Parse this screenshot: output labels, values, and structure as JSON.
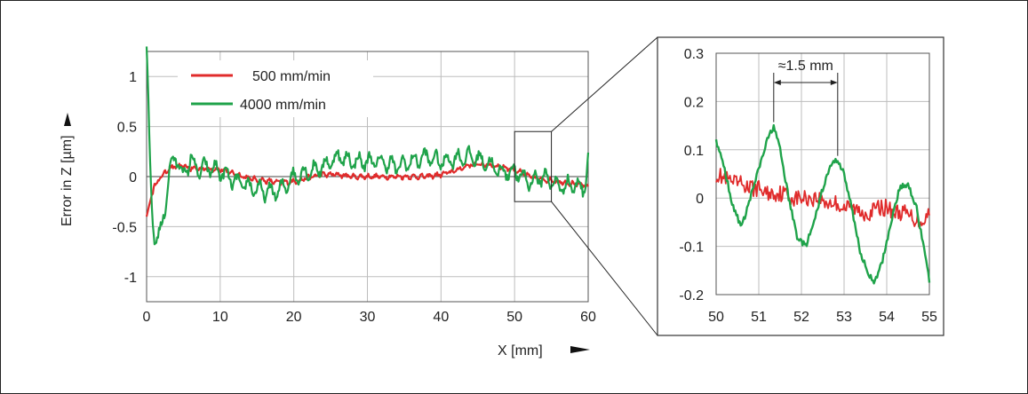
{
  "chart_data": [
    {
      "type": "line",
      "xlabel": "X [mm]",
      "ylabel": "Error in Z [µm]",
      "xlim": [
        0,
        60
      ],
      "ylim": [
        -1.25,
        1.25
      ],
      "xticks": [
        "0",
        "10",
        "20",
        "30",
        "40",
        "50",
        "60"
      ],
      "yticks": [
        "1",
        "0.5",
        "0",
        "-0.5",
        "-1"
      ],
      "grid": true,
      "legend_position": "top-left",
      "series": [
        {
          "name": "500 mm/min",
          "color": "#e02b2b",
          "x": [
            0,
            0.3,
            1,
            2,
            3,
            4,
            5,
            6,
            8,
            10,
            12,
            14,
            16,
            18,
            20,
            22,
            24,
            26,
            28,
            30,
            32,
            34,
            36,
            38,
            40,
            42,
            44,
            46,
            48,
            50,
            52,
            54,
            56,
            58,
            60
          ],
          "y": [
            -0.4,
            -0.3,
            -0.1,
            0.0,
            0.08,
            0.1,
            0.1,
            0.08,
            0.08,
            0.07,
            0.03,
            -0.02,
            -0.04,
            -0.06,
            -0.05,
            -0.01,
            0.02,
            0.02,
            0.0,
            0.0,
            0.0,
            0.0,
            0.0,
            0.0,
            0.02,
            0.06,
            0.12,
            0.12,
            0.1,
            0.07,
            0.0,
            -0.03,
            -0.05,
            -0.07,
            -0.1
          ]
        },
        {
          "name": "4000 mm/min",
          "color": "#1fa34a",
          "x": [
            0,
            0.2,
            0.4,
            0.7,
            1,
            1.5,
            2,
            2.5,
            3,
            3.5,
            4,
            5,
            6,
            7,
            8,
            10,
            12,
            14,
            16,
            18,
            20,
            22,
            24,
            26,
            28,
            30,
            32,
            34,
            36,
            38,
            40,
            42,
            44,
            46,
            48,
            50,
            52,
            54,
            56,
            58,
            59.5,
            60
          ],
          "y": [
            1.3,
            0.9,
            0.3,
            -0.3,
            -0.6,
            -0.6,
            -0.55,
            -0.3,
            0.0,
            0.15,
            0.2,
            0.0,
            0.18,
            0.05,
            0.1,
            0.05,
            -0.05,
            -0.1,
            -0.15,
            -0.15,
            0.0,
            0.05,
            0.1,
            0.2,
            0.15,
            0.15,
            0.15,
            0.1,
            0.15,
            0.2,
            0.15,
            0.18,
            0.2,
            0.15,
            0.05,
            0.05,
            -0.05,
            0.0,
            -0.1,
            -0.08,
            -0.12,
            0.2
          ]
        }
      ]
    },
    {
      "type": "line",
      "xlim": [
        50,
        55
      ],
      "ylim": [
        -0.2,
        0.3
      ],
      "xticks": [
        "50",
        "51",
        "52",
        "53",
        "54",
        "55"
      ],
      "yticks": [
        "0.3",
        "0.2",
        "0.1",
        "0",
        "-0.1",
        "-0.2"
      ],
      "grid": true,
      "annotations": [
        {
          "text": "≈1.5 mm",
          "x1": 51.35,
          "x2": 52.85
        }
      ],
      "series": [
        {
          "name": "500 mm/min",
          "color": "#e02b2b",
          "x": [
            50,
            50.2,
            50.4,
            50.6,
            50.8,
            51,
            51.2,
            51.4,
            51.6,
            51.8,
            52,
            52.2,
            52.4,
            52.6,
            52.8,
            53,
            53.2,
            53.4,
            53.6,
            53.8,
            54,
            54.2,
            54.4,
            54.6,
            54.8,
            55
          ],
          "y": [
            0.05,
            0.04,
            0.03,
            0.03,
            0.02,
            0.02,
            0.01,
            0.01,
            0.01,
            0.0,
            0.0,
            0.0,
            0.0,
            -0.01,
            -0.01,
            -0.02,
            -0.02,
            -0.03,
            -0.03,
            -0.02,
            -0.02,
            -0.03,
            -0.03,
            -0.04,
            -0.05,
            -0.03
          ]
        },
        {
          "name": "4000 mm/min",
          "color": "#1fa34a",
          "x": [
            50,
            50.2,
            50.4,
            50.6,
            50.8,
            51,
            51.2,
            51.35,
            51.5,
            51.7,
            51.9,
            52.1,
            52.3,
            52.5,
            52.7,
            52.85,
            53,
            53.2,
            53.4,
            53.7,
            53.9,
            54.1,
            54.3,
            54.5,
            54.7,
            54.9,
            55
          ],
          "y": [
            0.12,
            0.06,
            -0.02,
            -0.06,
            0.0,
            0.06,
            0.12,
            0.15,
            0.1,
            0.0,
            -0.08,
            -0.1,
            -0.05,
            0.02,
            0.07,
            0.08,
            0.05,
            -0.03,
            -0.12,
            -0.18,
            -0.13,
            -0.05,
            0.02,
            0.03,
            -0.02,
            -0.12,
            -0.17
          ]
        }
      ]
    }
  ]
}
